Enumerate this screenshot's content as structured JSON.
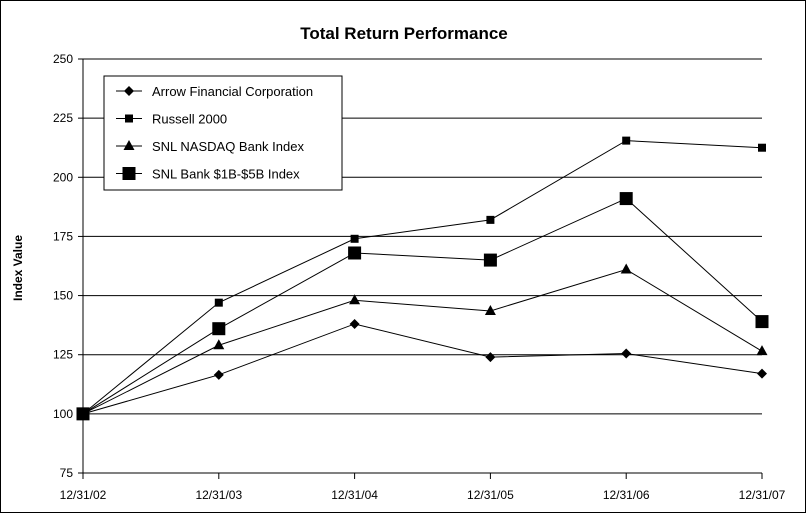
{
  "chart_data": {
    "type": "line",
    "title": "Total Return Performance",
    "xlabel": "",
    "ylabel": "Index Value",
    "categories": [
      "12/31/02",
      "12/31/03",
      "12/31/04",
      "12/31/05",
      "12/31/06",
      "12/31/07"
    ],
    "ylim": [
      75,
      250
    ],
    "yticks": [
      75,
      100,
      125,
      150,
      175,
      200,
      225,
      250
    ],
    "grid": true,
    "legend_position": "top-left",
    "series": [
      {
        "name": "Arrow Financial Corporation",
        "marker": "diamond",
        "values": [
          100,
          116.5,
          138,
          124,
          125.5,
          117
        ]
      },
      {
        "name": "Russell 2000",
        "marker": "square",
        "values": [
          100,
          147,
          174,
          182,
          215.5,
          212.5
        ]
      },
      {
        "name": "SNL NASDAQ Bank Index",
        "marker": "triangle",
        "values": [
          100,
          129,
          148,
          143.5,
          161,
          126.5
        ]
      },
      {
        "name": "SNL Bank $1B-$5B Index",
        "marker": "big-square",
        "values": [
          100,
          136,
          168,
          165,
          191,
          139
        ]
      }
    ]
  }
}
